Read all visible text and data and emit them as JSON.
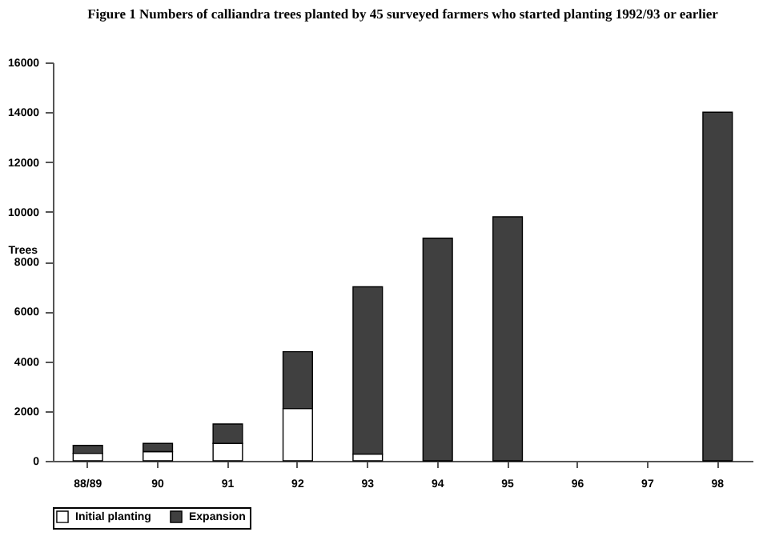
{
  "chart_data": {
    "type": "bar",
    "title": "Figure 1 Numbers of calliandra trees planted  by 45 surveyed farmers who started planting 1992/93 or earlier",
    "ylabel": "Trees",
    "categories": [
      "88/89",
      "90",
      "91",
      "92",
      "93",
      "94",
      "95",
      "96",
      "97",
      "98"
    ],
    "stacked": true,
    "legend": "bottom",
    "grid": false,
    "ylim": [
      0,
      16000
    ],
    "yticks": [
      0,
      2000,
      4000,
      6000,
      8000,
      10000,
      12000,
      14000,
      16000
    ],
    "series": [
      {
        "name": "Initial planting",
        "color": "#ffffff",
        "values": [
          300,
          370,
          700,
          2100,
          270,
          0,
          0,
          null,
          null,
          0
        ]
      },
      {
        "name": "Expansion",
        "color": "#404040",
        "values": [
          320,
          330,
          780,
          2280,
          6720,
          8940,
          9800,
          null,
          null,
          14000
        ]
      }
    ]
  }
}
